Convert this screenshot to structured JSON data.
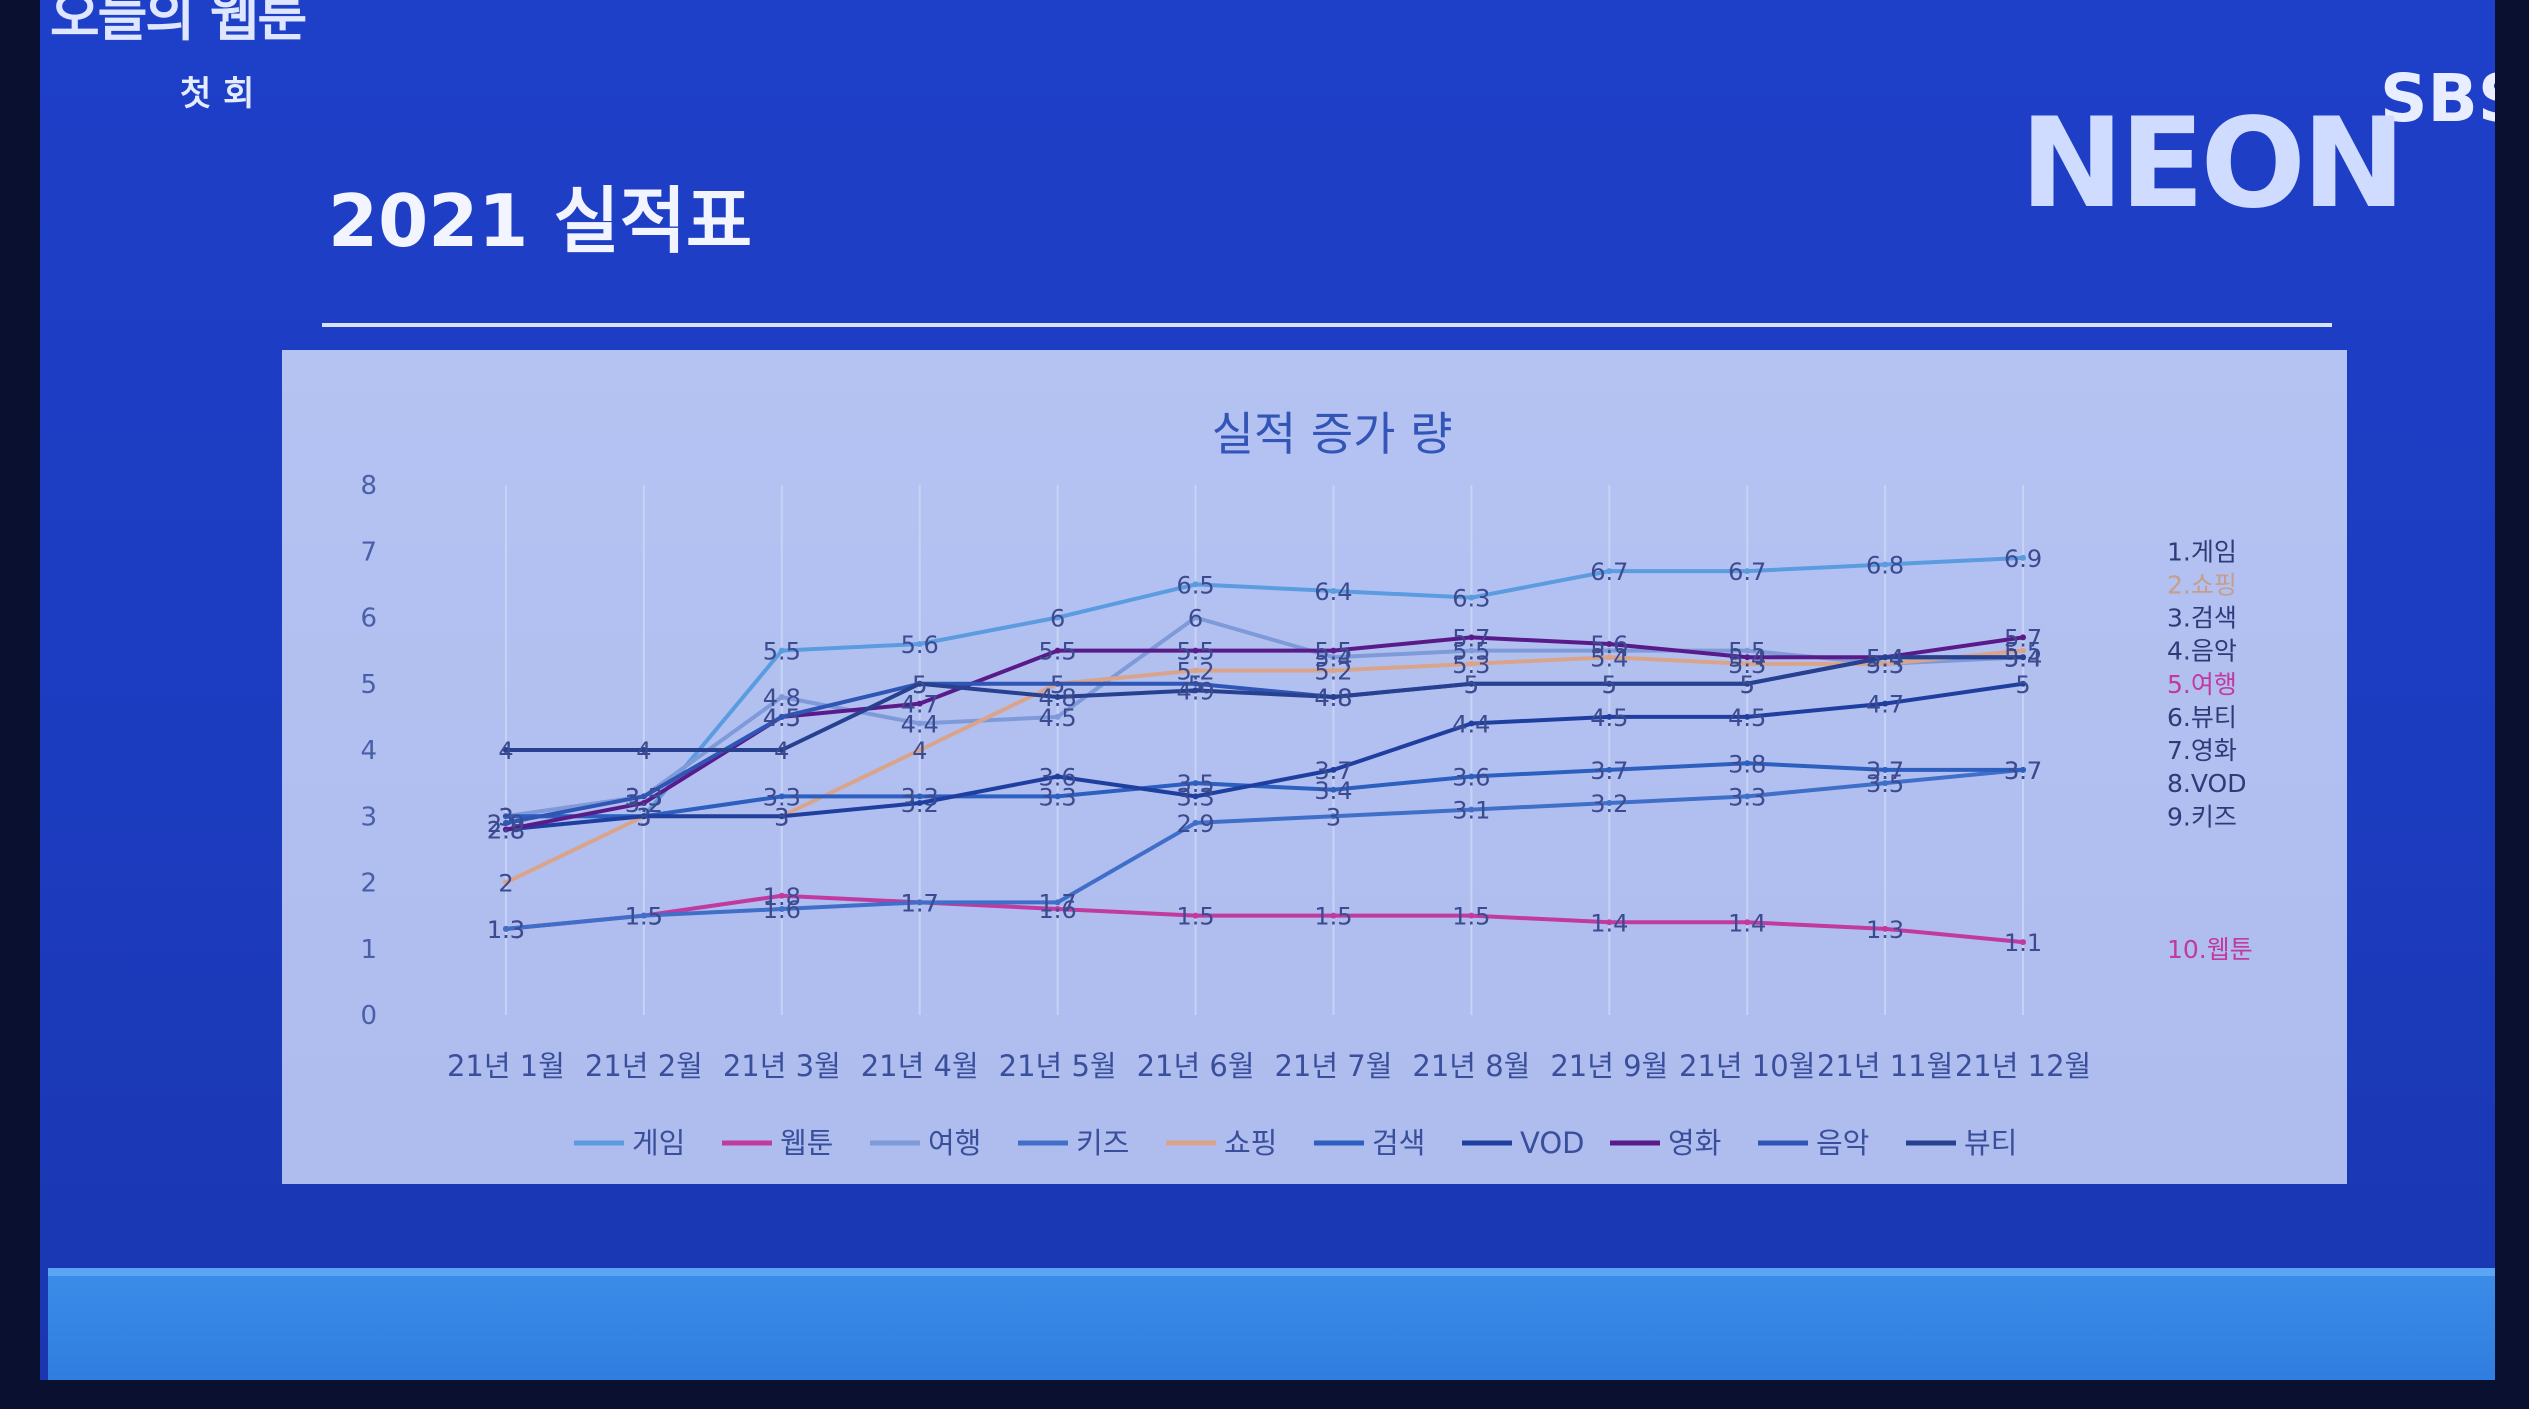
{
  "overlay": {
    "show_logo": "오늘의 웹툰",
    "episode": "첫 회",
    "broadcaster": "SBS",
    "channel": "NEON"
  },
  "slide": {
    "title": "2021 실적표"
  },
  "chart_data": {
    "type": "line",
    "title": "실적 증가 량",
    "categories": [
      "21년 1월",
      "21년 2월",
      "21년 3월",
      "21년 4월",
      "21년 5월",
      "21년 6월",
      "21년 7월",
      "21년 8월",
      "21년 9월",
      "21년 10월",
      "21년 11월",
      "21년 12월"
    ],
    "ylim": [
      0,
      8
    ],
    "yticks": [
      0,
      1,
      2,
      3,
      4,
      5,
      6,
      7,
      8
    ],
    "grid": true,
    "legend_position": "bottom",
    "series": [
      {
        "name": "게임",
        "color": "#5b9be0",
        "values": [
          3,
          3,
          5.5,
          5.6,
          6,
          6.5,
          6.4,
          6.3,
          6.7,
          6.7,
          6.8,
          6.9
        ]
      },
      {
        "name": "웹툰",
        "color": "#c13aa0",
        "values": [
          1.3,
          1.5,
          1.8,
          1.7,
          1.6,
          1.5,
          1.5,
          1.5,
          1.4,
          1.4,
          1.3,
          1.1
        ]
      },
      {
        "name": "여행",
        "color": "#7f9ad8",
        "values": [
          3,
          3.3,
          4.8,
          4.4,
          4.5,
          6,
          5.4,
          5.5,
          5.5,
          5.5,
          5.3,
          5.4
        ]
      },
      {
        "name": "키즈",
        "color": "#3f6fc8",
        "values": [
          1.3,
          1.5,
          1.6,
          1.7,
          1.7,
          2.9,
          3,
          3.1,
          3.2,
          3.3,
          3.5,
          3.7
        ]
      },
      {
        "name": "쇼핑",
        "color": "#d9a48a",
        "values": [
          2,
          3,
          3,
          4,
          5,
          5.2,
          5.2,
          5.3,
          5.4,
          5.3,
          5.3,
          5.5
        ]
      },
      {
        "name": "검색",
        "color": "#2c5fbf",
        "values": [
          3,
          3,
          3.3,
          3.3,
          3.3,
          3.5,
          3.4,
          3.6,
          3.7,
          3.8,
          3.7,
          3.7
        ]
      },
      {
        "name": "VOD",
        "color": "#1f3fa0",
        "values": [
          2.8,
          3,
          3,
          3.2,
          3.6,
          3.3,
          3.7,
          4.4,
          4.5,
          4.5,
          4.7,
          5
        ]
      },
      {
        "name": "영화",
        "color": "#5a1b8a",
        "values": [
          2.8,
          3.2,
          4.5,
          4.7,
          5.5,
          5.5,
          5.5,
          5.7,
          5.6,
          5.4,
          5.4,
          5.7
        ]
      },
      {
        "name": "음악",
        "color": "#2f55b5",
        "values": [
          2.9,
          3.3,
          4.5,
          5,
          5,
          5,
          4.8,
          5,
          5,
          5,
          5.4,
          5.4
        ]
      },
      {
        "name": "뷰티",
        "color": "#27408f",
        "values": [
          4,
          4,
          4,
          5,
          4.8,
          4.9,
          4.8,
          5,
          5,
          5,
          5.4,
          5.4
        ]
      }
    ],
    "right_labels": [
      {
        "text": "1.게임",
        "color": "#2f3a78",
        "value": 7
      },
      {
        "text": "2.쇼핑",
        "color": "#c79d8c",
        "value": 6.5
      },
      {
        "text": "3.검색",
        "color": "#2f3a78",
        "value": 6
      },
      {
        "text": "4.음악",
        "color": "#2f3a78",
        "value": 5.5
      },
      {
        "text": "5.여행",
        "color": "#c13aa0",
        "value": 5
      },
      {
        "text": "6.뷰티",
        "color": "#2f3a78",
        "value": 4.5
      },
      {
        "text": "7.영화",
        "color": "#2f3a78",
        "value": 4
      },
      {
        "text": "8.VOD",
        "color": "#2f3a78",
        "value": 3.5
      },
      {
        "text": "9.키즈",
        "color": "#2f3a78",
        "value": 3
      },
      {
        "text": "10.웹툰",
        "color": "#c13aa0",
        "value": 1
      }
    ]
  }
}
